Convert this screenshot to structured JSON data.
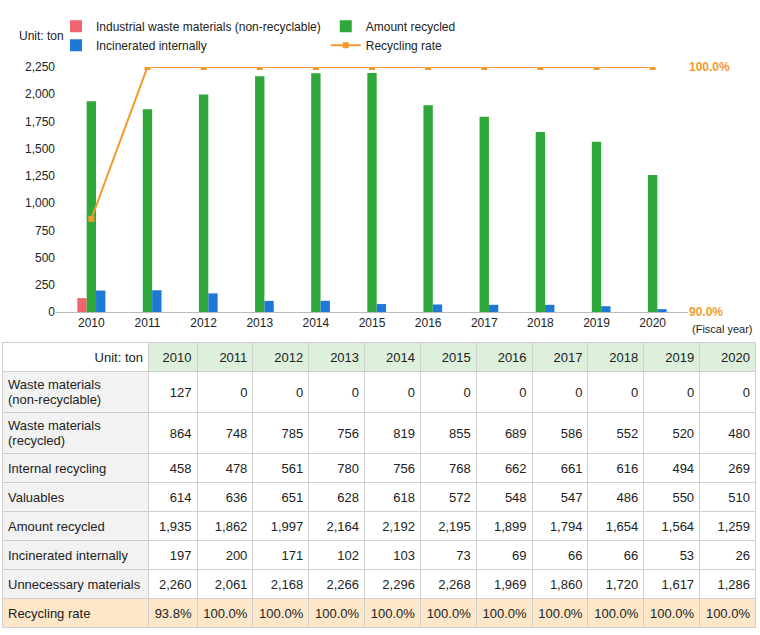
{
  "chart_data": {
    "type": "bar",
    "ylabel": "Unit: ton",
    "xlabel": "(Fiscal year)",
    "categories": [
      "2010",
      "2011",
      "2012",
      "2013",
      "2014",
      "2015",
      "2016",
      "2017",
      "2018",
      "2019",
      "2020"
    ],
    "series": [
      {
        "name": "Industrial waste materials (non-recyclable)",
        "type": "bar",
        "color": "#f0646c",
        "values": [
          127,
          0,
          0,
          0,
          0,
          0,
          0,
          0,
          0,
          0,
          0
        ]
      },
      {
        "name": "Amount recycled",
        "type": "bar",
        "color": "#2fa83a",
        "values": [
          1935,
          1862,
          1997,
          2164,
          2192,
          2195,
          1899,
          1794,
          1654,
          1564,
          1259
        ]
      },
      {
        "name": "Incinerated internally",
        "type": "bar",
        "color": "#1f78d6",
        "values": [
          197,
          200,
          171,
          102,
          103,
          73,
          69,
          66,
          66,
          53,
          26
        ]
      },
      {
        "name": "Recycling rate",
        "type": "line",
        "axis": "y2",
        "color": "#f39a2c",
        "marker": "square",
        "values": [
          93.8,
          100,
          100,
          100,
          100,
          100,
          100,
          100,
          100,
          100,
          100
        ]
      }
    ],
    "ylim": [
      0,
      2250
    ],
    "yticks": [
      0,
      250,
      500,
      750,
      {
        "value": 1000,
        "label": "1,000"
      },
      {
        "value": 1250,
        "label": "1,250"
      },
      {
        "value": 1500,
        "label": "1,500"
      },
      {
        "value": 1750,
        "label": "1,750"
      },
      {
        "value": 2000,
        "label": "2,000"
      },
      {
        "value": 2250,
        "label": "2,250"
      }
    ],
    "y2lim": [
      90,
      100
    ],
    "y2ticks": [
      {
        "value": 90,
        "label": "90.0%"
      },
      {
        "value": 100,
        "label": "100.0%"
      }
    ],
    "grid": false,
    "legend": "top"
  },
  "table": {
    "header": [
      "Unit: ton",
      "2010",
      "2011",
      "2012",
      "2013",
      "2014",
      "2015",
      "2016",
      "2017",
      "2018",
      "2019",
      "2020"
    ],
    "rows": [
      {
        "label": [
          "Waste materials",
          "(non-recyclable)"
        ],
        "cells": [
          "127",
          "0",
          "0",
          "0",
          "0",
          "0",
          "0",
          "0",
          "0",
          "0",
          "0"
        ]
      },
      {
        "label": [
          "Waste materials",
          "(recycled)"
        ],
        "cells": [
          "864",
          "748",
          "785",
          "756",
          "819",
          "855",
          "689",
          "586",
          "552",
          "520",
          "480"
        ]
      },
      {
        "label": [
          "Internal recycling"
        ],
        "cells": [
          "458",
          "478",
          "561",
          "780",
          "756",
          "768",
          "662",
          "661",
          "616",
          "494",
          "269"
        ]
      },
      {
        "label": [
          "Valuables"
        ],
        "cells": [
          "614",
          "636",
          "651",
          "628",
          "618",
          "572",
          "548",
          "547",
          "486",
          "550",
          "510"
        ]
      },
      {
        "label": [
          "Amount recycled"
        ],
        "cells": [
          "1,935",
          "1,862",
          "1,997",
          "2,164",
          "2,192",
          "2,195",
          "1,899",
          "1,794",
          "1,654",
          "1,564",
          "1,259"
        ]
      },
      {
        "label": [
          "Incinerated internally"
        ],
        "cells": [
          "197",
          "200",
          "171",
          "102",
          "103",
          "73",
          "69",
          "66",
          "66",
          "53",
          "26"
        ]
      },
      {
        "label": [
          "Unnecessary materials"
        ],
        "cells": [
          "2,260",
          "2,061",
          "2,168",
          "2,266",
          "2,296",
          "2,268",
          "1,969",
          "1,860",
          "1,720",
          "1,617",
          "1,286"
        ]
      },
      {
        "label": [
          "Recycling rate"
        ],
        "cells": [
          "93.8%",
          "100.0%",
          "100.0%",
          "100.0%",
          "100.0%",
          "100.0%",
          "100.0%",
          "100.0%",
          "100.0%",
          "100.0%",
          "100.0%"
        ]
      }
    ]
  }
}
